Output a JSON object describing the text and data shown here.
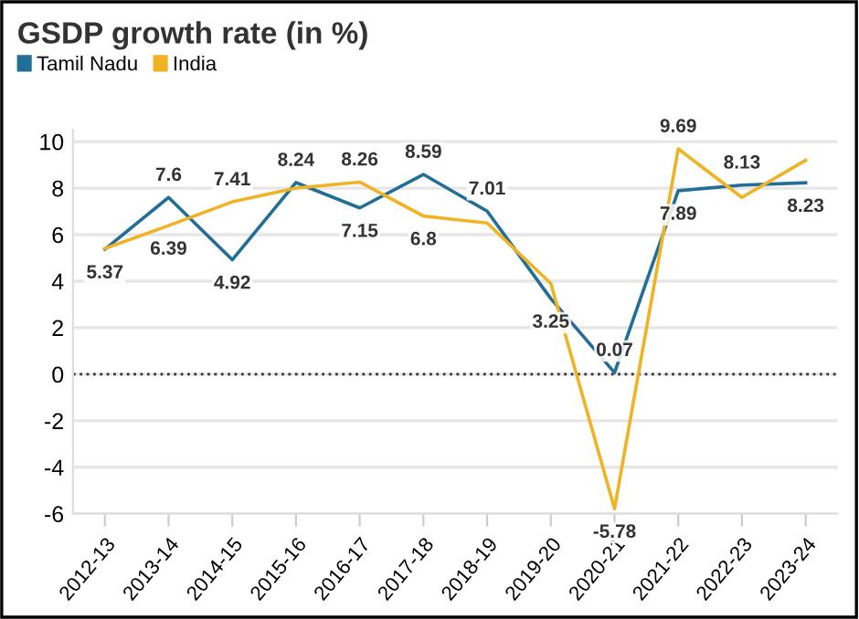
{
  "chart_data": {
    "type": "line",
    "title": "GSDP growth rate (in %)",
    "categories": [
      "2012-13",
      "2013-14",
      "2014-15",
      "2015-16",
      "2016-17",
      "2017-18",
      "2018-19",
      "2019-20",
      "2020-21",
      "2021-22",
      "2022-23",
      "2023-24"
    ],
    "series": [
      {
        "name": "Tamil Nadu",
        "color": "#226e97",
        "values": [
          5.37,
          7.6,
          4.92,
          8.24,
          7.15,
          8.59,
          7.01,
          3.25,
          0.07,
          7.89,
          8.13,
          8.23
        ],
        "value_labels": [
          "5.37",
          "7.6",
          "4.92",
          "8.24",
          "7.15",
          "8.59",
          "7.01",
          "3.25",
          "0.07",
          "7.89",
          "8.13",
          "8.23"
        ]
      },
      {
        "name": "India",
        "color": "#f0b323",
        "values": [
          5.4,
          6.39,
          7.41,
          8.0,
          8.26,
          6.8,
          6.5,
          3.9,
          -5.78,
          9.69,
          7.6,
          9.2
        ],
        "value_labels": [
          null,
          "6.39",
          "7.41",
          null,
          "8.26",
          "6.8",
          null,
          null,
          "-5.78",
          "9.69",
          null,
          null
        ]
      }
    ],
    "ylim": [
      -6,
      10.5
    ],
    "yticks": [
      -6,
      -4,
      -2,
      0,
      2,
      4,
      6,
      8,
      10
    ],
    "grid": "y",
    "legend": "top left",
    "ref_lines": [
      {
        "axis": "y",
        "value": 0,
        "color": "#333333",
        "line_style": "dotted"
      }
    ]
  }
}
